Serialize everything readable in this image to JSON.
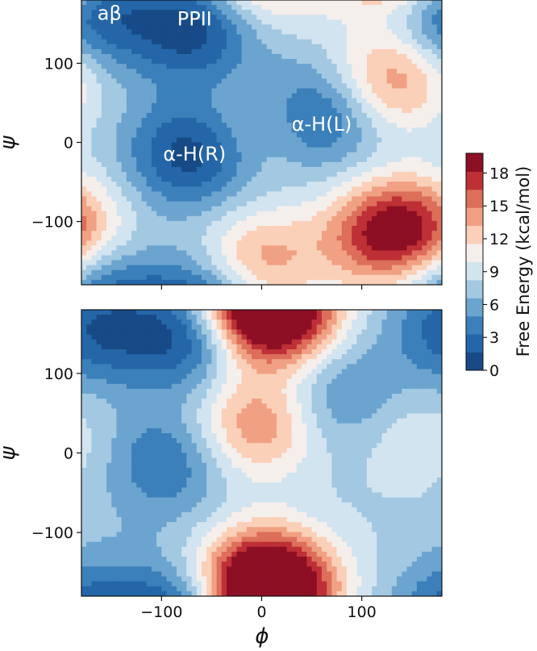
{
  "chart_data": [
    {
      "type": "heatmap",
      "subtype": "filled-contour",
      "panel": "top",
      "xlabel": "",
      "ylabel": "ψ",
      "xlim": [
        -180,
        180
      ],
      "ylim": [
        -180,
        180
      ],
      "xticks": [],
      "yticks": [
        100,
        0,
        -100
      ],
      "ytick_labels": [
        "100",
        "0",
        "−100"
      ],
      "grid": false,
      "annotations": [
        {
          "text": "aβ",
          "x": -152,
          "y": 155
        },
        {
          "text": "PPII",
          "x": -67,
          "y": 148
        },
        {
          "text": "α-H(R)",
          "x": -67,
          "y": -23
        },
        {
          "text": "α-H(L)",
          "x": 60,
          "y": 15
        }
      ],
      "features": [
        {
          "label": "well",
          "x": -168,
          "y": 160,
          "value": 1.5
        },
        {
          "label": "well",
          "x": -65,
          "y": 145,
          "value": 0.5
        },
        {
          "label": "well",
          "x": -70,
          "y": -15,
          "value": 0.5
        },
        {
          "label": "well",
          "x": 55,
          "y": 35,
          "value": 0.8
        },
        {
          "label": "peak",
          "x": 130,
          "y": -115,
          "value": 19.5
        },
        {
          "label": "peak",
          "x": 130,
          "y": 80,
          "value": 15
        },
        {
          "label": "peak",
          "x": 0,
          "y": -150,
          "value": 14
        },
        {
          "label": "peak",
          "x": 5,
          "y": 20,
          "value": 11
        },
        {
          "label": "peak",
          "x": -180,
          "y": -100,
          "value": 10
        }
      ]
    },
    {
      "type": "heatmap",
      "subtype": "filled-contour",
      "panel": "bottom",
      "xlabel": "ϕ",
      "ylabel": "ψ",
      "xlim": [
        -180,
        180
      ],
      "ylim": [
        -180,
        180
      ],
      "xticks": [
        -100,
        0,
        100
      ],
      "xtick_labels": [
        "−100",
        "0",
        "100"
      ],
      "yticks": [
        100,
        0,
        -100
      ],
      "ytick_labels": [
        "100",
        "0",
        "−100"
      ],
      "grid": false,
      "features": [
        {
          "label": "well",
          "x": -70,
          "y": 150,
          "value": 0.5
        },
        {
          "label": "well",
          "x": -165,
          "y": 155,
          "value": 2
        },
        {
          "label": "well",
          "x": -95,
          "y": -10,
          "value": 3
        },
        {
          "label": "well",
          "x": 75,
          "y": 70,
          "value": 4
        },
        {
          "label": "peak",
          "x": 0,
          "y": -160,
          "value": 19
        },
        {
          "label": "peak",
          "x": 10,
          "y": 172,
          "value": 18
        },
        {
          "label": "peak",
          "x": -5,
          "y": 35,
          "value": 15
        },
        {
          "label": "peak",
          "x": 155,
          "y": 15,
          "value": 10
        },
        {
          "label": "peak",
          "x": 100,
          "y": -130,
          "value": 8
        }
      ]
    }
  ],
  "colorbar": {
    "label": "Free Energy (kcal/mol)",
    "ticks": [
      0,
      3,
      6,
      9,
      12,
      15,
      18
    ],
    "range": [
      0,
      19.8
    ],
    "colormap": "RdBu_r"
  }
}
